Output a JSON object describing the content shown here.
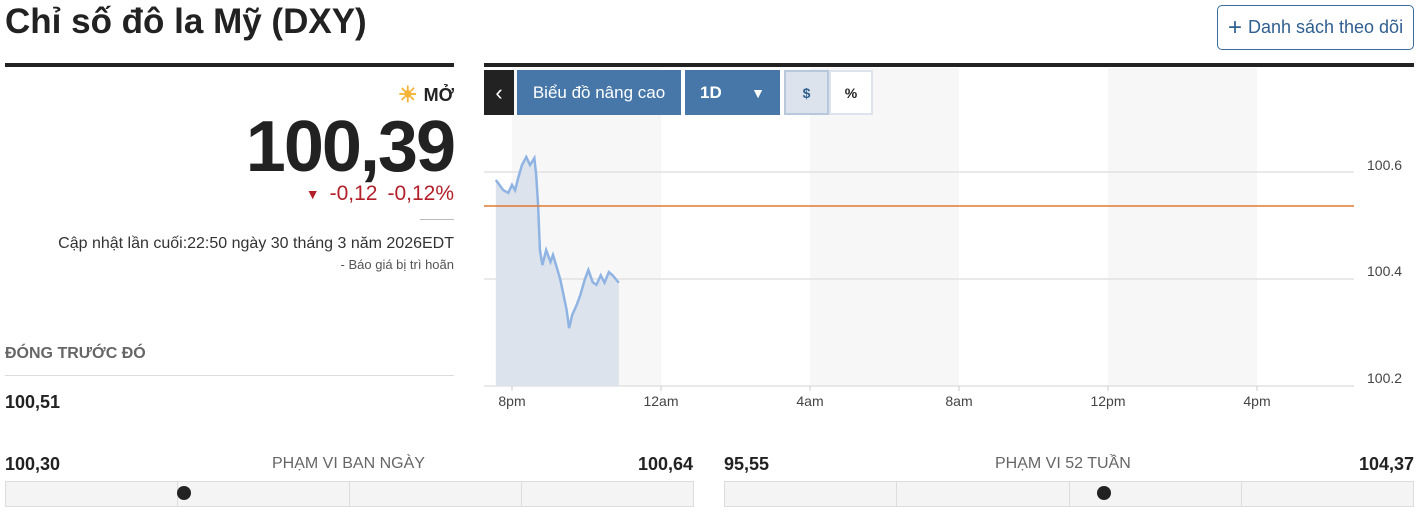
{
  "header": {
    "title": "Chỉ số đô la Mỹ (DXY)",
    "watchlist_label": "Danh sách theo dõi"
  },
  "quote": {
    "status": "MỞ",
    "price": "100,39",
    "change": "-0,12",
    "change_pct": "-0,12%",
    "updated": "Cập nhật lần cuối:22:50 ngày 30 tháng 3 năm 2026EDT",
    "delayed": "-  Báo giá bị trì hoãn",
    "prev_close_label": "ĐÓNG TRƯỚC ĐÓ",
    "prev_close": "100,51"
  },
  "toolbar": {
    "back": "‹",
    "advanced": "Biểu đồ nâng cao",
    "period": "1D",
    "dollar": "$",
    "percent": "%"
  },
  "ranges": {
    "day": {
      "label": "PHẠM VI BAN NGÀY",
      "low": "100,30",
      "high": "100,64",
      "position": 0.26
    },
    "week52": {
      "label": "PHẠM VI 52 TUẦN",
      "low": "95,55",
      "high": "104,37",
      "position": 0.55
    }
  },
  "colors": {
    "line": "#8fb4e3",
    "fill": "#dde3ec",
    "prev_close_line": "#e07b30",
    "down": "#b3202a",
    "accent": "#4677a8"
  },
  "chart_data": {
    "type": "area",
    "x_ticks": [
      "8pm",
      "12am",
      "4am",
      "8am",
      "12pm",
      "4pm"
    ],
    "y_ticks": [
      "100.6",
      "100.4",
      "100.2"
    ],
    "ylim": [
      100.2,
      100.72
    ],
    "reference_line": 100.51,
    "x": [
      "19:34",
      "19:46",
      "19:54",
      "20:00",
      "20:05",
      "20:10",
      "20:16",
      "20:23",
      "20:29",
      "20:36",
      "20:39",
      "20:42",
      "20:45",
      "20:49",
      "20:55",
      "21:02",
      "21:06",
      "21:11",
      "21:18",
      "21:23",
      "21:28",
      "21:32",
      "21:37",
      "21:44",
      "21:50",
      "21:57",
      "22:03",
      "22:10",
      "22:16",
      "22:23",
      "22:29",
      "22:36",
      "22:42",
      "22:52"
    ],
    "values": [
      100.585,
      100.566,
      100.561,
      100.576,
      100.566,
      100.589,
      100.613,
      100.628,
      100.613,
      100.626,
      100.594,
      100.538,
      100.454,
      100.426,
      100.454,
      100.432,
      100.445,
      100.426,
      100.398,
      100.37,
      100.342,
      100.308,
      100.333,
      100.351,
      100.37,
      100.398,
      100.417,
      100.394,
      100.389,
      100.407,
      100.393,
      100.413,
      100.407,
      100.393
    ]
  }
}
